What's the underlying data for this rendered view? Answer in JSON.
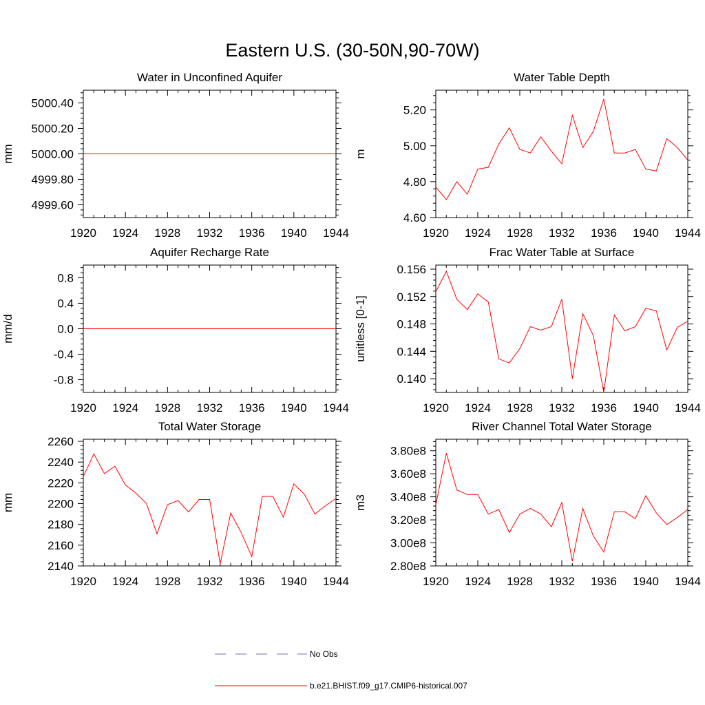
{
  "figure": {
    "title": "Eastern U.S. (30-50N,90-70W)"
  },
  "legend": {
    "entries": [
      {
        "label": "No Obs",
        "color": "#6f6fae",
        "style": "dashed"
      },
      {
        "label": "b.e21.BHIST.f09_g17.CMIP6-historical.007",
        "color": "#ff0000",
        "style": "solid"
      }
    ]
  },
  "colors": {
    "series": "#ff0000",
    "axis": "#000000"
  },
  "chart_data": [
    {
      "type": "line",
      "title": "Water in Unconfined Aquifer",
      "ylabel": "mm",
      "xlim": [
        1920,
        1944
      ],
      "xticks": [
        1920,
        1924,
        1928,
        1932,
        1936,
        1940,
        1944
      ],
      "ylim": [
        4999.5,
        5000.5
      ],
      "yticks": [
        4999.6,
        4999.8,
        5000.0,
        5000.2,
        5000.4
      ],
      "ytick_labels": [
        "4999.60",
        "4999.80",
        "5000.00",
        "5000.20",
        "5000.40"
      ],
      "x": [
        1920,
        1921,
        1922,
        1923,
        1924,
        1925,
        1926,
        1927,
        1928,
        1929,
        1930,
        1931,
        1932,
        1933,
        1934,
        1935,
        1936,
        1937,
        1938,
        1939,
        1940,
        1941,
        1942,
        1943,
        1944
      ],
      "series": [
        {
          "name": "b.e21.BHIST.f09_g17.CMIP6-historical.007",
          "values": [
            5000,
            5000,
            5000,
            5000,
            5000,
            5000,
            5000,
            5000,
            5000,
            5000,
            5000,
            5000,
            5000,
            5000,
            5000,
            5000,
            5000,
            5000,
            5000,
            5000,
            5000,
            5000,
            5000,
            5000,
            5000
          ]
        }
      ]
    },
    {
      "type": "line",
      "title": "Water Table Depth",
      "ylabel": "m",
      "xlim": [
        1920,
        1944
      ],
      "xticks": [
        1920,
        1924,
        1928,
        1932,
        1936,
        1940,
        1944
      ],
      "ylim": [
        4.6,
        5.31
      ],
      "yticks": [
        4.6,
        4.8,
        5.0,
        5.2
      ],
      "ytick_labels": [
        "4.60",
        "4.80",
        "5.00",
        "5.20"
      ],
      "x": [
        1920,
        1921,
        1922,
        1923,
        1924,
        1925,
        1926,
        1927,
        1928,
        1929,
        1930,
        1931,
        1932,
        1933,
        1934,
        1935,
        1936,
        1937,
        1938,
        1939,
        1940,
        1941,
        1942,
        1943,
        1944
      ],
      "series": [
        {
          "name": "b.e21.BHIST.f09_g17.CMIP6-historical.007",
          "values": [
            4.77,
            4.7,
            4.8,
            4.73,
            4.87,
            4.88,
            5.01,
            5.1,
            4.98,
            4.96,
            5.05,
            4.97,
            4.9,
            5.17,
            4.99,
            5.08,
            5.26,
            4.96,
            4.96,
            4.98,
            4.87,
            4.86,
            5.04,
            4.99,
            4.92
          ]
        }
      ]
    },
    {
      "type": "line",
      "title": "Aquifer Recharge Rate",
      "ylabel": "mm/d",
      "xlim": [
        1920,
        1944
      ],
      "xticks": [
        1920,
        1924,
        1928,
        1932,
        1936,
        1940,
        1944
      ],
      "ylim": [
        -1.0,
        1.0
      ],
      "yticks": [
        -0.8,
        -0.4,
        0.0,
        0.4,
        0.8
      ],
      "ytick_labels": [
        "-0.8",
        "-0.4",
        "0.0",
        "0.4",
        "0.8"
      ],
      "x": [
        1920,
        1921,
        1922,
        1923,
        1924,
        1925,
        1926,
        1927,
        1928,
        1929,
        1930,
        1931,
        1932,
        1933,
        1934,
        1935,
        1936,
        1937,
        1938,
        1939,
        1940,
        1941,
        1942,
        1943,
        1944
      ],
      "series": [
        {
          "name": "b.e21.BHIST.f09_g17.CMIP6-historical.007",
          "values": [
            0,
            0,
            0,
            0,
            0,
            0,
            0,
            0,
            0,
            0,
            0,
            0,
            0,
            0,
            0,
            0,
            0,
            0,
            0,
            0,
            0,
            0,
            0,
            0,
            0
          ]
        }
      ]
    },
    {
      "type": "line",
      "title": "Frac Water Table at Surface",
      "ylabel": "unitless [0-1]",
      "xlim": [
        1920,
        1944
      ],
      "xticks": [
        1920,
        1924,
        1928,
        1932,
        1936,
        1940,
        1944
      ],
      "ylim": [
        0.138,
        0.1566
      ],
      "yticks": [
        0.14,
        0.144,
        0.148,
        0.152,
        0.156
      ],
      "ytick_labels": [
        "0.140",
        "0.144",
        "0.148",
        "0.152",
        "0.156"
      ],
      "x": [
        1920,
        1921,
        1922,
        1923,
        1924,
        1925,
        1926,
        1927,
        1928,
        1929,
        1930,
        1931,
        1932,
        1933,
        1934,
        1935,
        1936,
        1937,
        1938,
        1939,
        1940,
        1941,
        1942,
        1943,
        1944
      ],
      "series": [
        {
          "name": "b.e21.BHIST.f09_g17.CMIP6-historical.007",
          "values": [
            0.1527,
            0.1557,
            0.1516,
            0.1501,
            0.1524,
            0.1512,
            0.1429,
            0.1423,
            0.1444,
            0.1476,
            0.1471,
            0.1476,
            0.1516,
            0.14,
            0.1495,
            0.1463,
            0.138,
            0.1493,
            0.147,
            0.1476,
            0.1503,
            0.1499,
            0.1442,
            0.1475,
            0.1484
          ]
        }
      ]
    },
    {
      "type": "line",
      "title": "Total Water Storage",
      "ylabel": "mm",
      "xlim": [
        1920,
        1944
      ],
      "xticks": [
        1920,
        1924,
        1928,
        1932,
        1936,
        1940,
        1944
      ],
      "ylim": [
        2140,
        2262
      ],
      "yticks": [
        2140,
        2160,
        2180,
        2200,
        2220,
        2240,
        2260
      ],
      "ytick_labels": [
        "2140",
        "2160",
        "2180",
        "2200",
        "2220",
        "2240",
        "2260"
      ],
      "x": [
        1920,
        1921,
        1922,
        1923,
        1924,
        1925,
        1926,
        1927,
        1928,
        1929,
        1930,
        1931,
        1932,
        1933,
        1934,
        1935,
        1936,
        1937,
        1938,
        1939,
        1940,
        1941,
        1942,
        1943,
        1944
      ],
      "series": [
        {
          "name": "b.e21.BHIST.f09_g17.CMIP6-historical.007",
          "values": [
            2226,
            2248,
            2229,
            2236,
            2218,
            2210,
            2200,
            2171,
            2199,
            2203,
            2192,
            2204,
            2204,
            2142,
            2191,
            2172,
            2149,
            2207,
            2207,
            2187,
            2219,
            2209,
            2190,
            2198,
            2205
          ]
        }
      ]
    },
    {
      "type": "line",
      "title": "River Channel Total Water Storage",
      "ylabel": "m3",
      "xlim": [
        1920,
        1944
      ],
      "xticks": [
        1920,
        1924,
        1928,
        1932,
        1936,
        1940,
        1944
      ],
      "ylim": [
        280000000.0,
        390000000.0
      ],
      "yticks": [
        280000000.0,
        300000000.0,
        320000000.0,
        340000000.0,
        360000000.0,
        380000000.0
      ],
      "ytick_labels": [
        "2.80e8",
        "3.00e8",
        "3.20e8",
        "3.40e8",
        "3.60e8",
        "3.80e8"
      ],
      "x": [
        1920,
        1921,
        1922,
        1923,
        1924,
        1925,
        1926,
        1927,
        1928,
        1929,
        1930,
        1931,
        1932,
        1933,
        1934,
        1935,
        1936,
        1937,
        1938,
        1939,
        1940,
        1941,
        1942,
        1943,
        1944
      ],
      "series": [
        {
          "name": "b.e21.BHIST.f09_g17.CMIP6-historical.007",
          "values": [
            333000000.0,
            378000000.0,
            346000000.0,
            342000000.0,
            342000000.0,
            325000000.0,
            329000000.0,
            309000000.0,
            325000000.0,
            330000000.0,
            325000000.0,
            314000000.0,
            335000000.0,
            284000000.0,
            330000000.0,
            306000000.0,
            292000000.0,
            327000000.0,
            327000000.0,
            321000000.0,
            341000000.0,
            326000000.0,
            316000000.0,
            322000000.0,
            329000000.0
          ]
        }
      ]
    }
  ]
}
